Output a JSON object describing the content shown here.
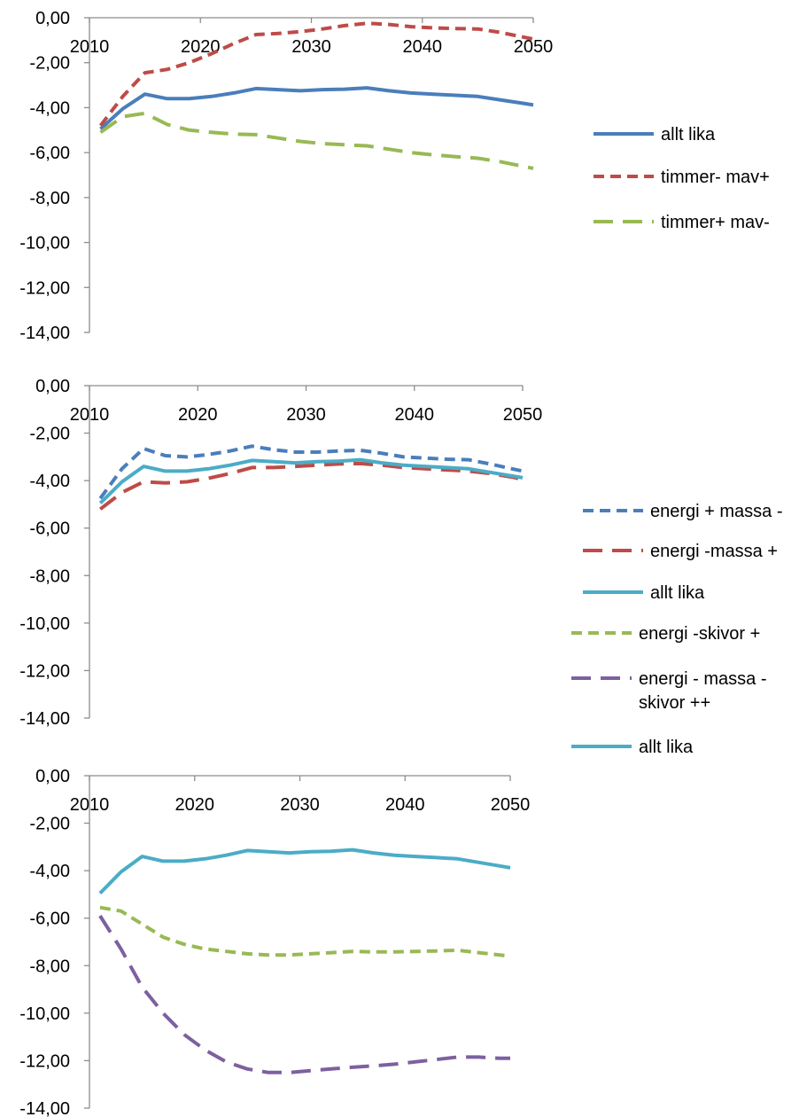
{
  "chart_data": [
    {
      "type": "line",
      "title": "",
      "xlabel": "",
      "ylabel": "",
      "xlim": [
        2010,
        2050
      ],
      "ylim": [
        -14,
        0
      ],
      "x_ticks": [
        "2010",
        "2020",
        "2030",
        "2040",
        "2050"
      ],
      "y_ticks": [
        "0,00",
        "-2,00",
        "-4,00",
        "-6,00",
        "-8,00",
        "-10,00",
        "-12,00",
        "-14,00"
      ],
      "grid": false,
      "legend_position": "right",
      "series": [
        {
          "name": "allt lika",
          "color": "#4a7ebb",
          "dash": "solid",
          "x": [
            2011,
            2013,
            2015,
            2017,
            2019,
            2021,
            2023,
            2025,
            2027,
            2029,
            2031,
            2033,
            2035,
            2037,
            2039,
            2041,
            2043,
            2045,
            2047,
            2049,
            2050
          ],
          "y": [
            -4.95,
            -4.05,
            -3.4,
            -3.6,
            -3.6,
            -3.5,
            -3.35,
            -3.15,
            -3.2,
            -3.25,
            -3.2,
            -3.18,
            -3.12,
            -3.25,
            -3.35,
            -3.4,
            -3.45,
            -3.5,
            -3.65,
            -3.8,
            -3.88
          ]
        },
        {
          "name": "timmer- mav+",
          "color": "#be4b48",
          "dash": "short",
          "x": [
            2011,
            2013,
            2015,
            2017,
            2019,
            2021,
            2023,
            2025,
            2027,
            2029,
            2031,
            2033,
            2035,
            2037,
            2039,
            2041,
            2043,
            2045,
            2047,
            2049,
            2050
          ],
          "y": [
            -4.8,
            -3.5,
            -2.45,
            -2.3,
            -2.0,
            -1.6,
            -1.15,
            -0.75,
            -0.7,
            -0.62,
            -0.5,
            -0.35,
            -0.25,
            -0.3,
            -0.4,
            -0.45,
            -0.48,
            -0.5,
            -0.65,
            -0.85,
            -0.95
          ]
        },
        {
          "name": "timmer+ mav-",
          "color": "#98b954",
          "dash": "long",
          "x": [
            2011,
            2013,
            2015,
            2017,
            2019,
            2021,
            2023,
            2025,
            2027,
            2029,
            2031,
            2033,
            2035,
            2037,
            2039,
            2041,
            2043,
            2045,
            2047,
            2049,
            2050
          ],
          "y": [
            -5.1,
            -4.4,
            -4.25,
            -4.75,
            -5.0,
            -5.1,
            -5.18,
            -5.2,
            -5.35,
            -5.5,
            -5.6,
            -5.65,
            -5.7,
            -5.85,
            -6.0,
            -6.1,
            -6.18,
            -6.25,
            -6.4,
            -6.6,
            -6.7
          ]
        }
      ]
    },
    {
      "type": "line",
      "title": "",
      "xlabel": "",
      "ylabel": "",
      "xlim": [
        2010,
        2050
      ],
      "ylim": [
        -14,
        0
      ],
      "x_ticks": [
        "2010",
        "2020",
        "2030",
        "2040",
        "2050"
      ],
      "y_ticks": [
        "0,00",
        "-2,00",
        "-4,00",
        "-6,00",
        "-8,00",
        "-10,00",
        "-12,00",
        "-14,00"
      ],
      "grid": false,
      "legend_position": "right",
      "series": [
        {
          "name": "energi + massa -",
          "color": "#4a7ebb",
          "dash": "short",
          "x": [
            2011,
            2013,
            2015,
            2017,
            2019,
            2021,
            2023,
            2025,
            2027,
            2029,
            2031,
            2033,
            2035,
            2037,
            2039,
            2041,
            2043,
            2045,
            2047,
            2049,
            2050
          ],
          "y": [
            -4.75,
            -3.5,
            -2.65,
            -2.95,
            -3.0,
            -2.9,
            -2.75,
            -2.55,
            -2.7,
            -2.8,
            -2.8,
            -2.75,
            -2.72,
            -2.85,
            -3.0,
            -3.05,
            -3.1,
            -3.12,
            -3.3,
            -3.5,
            -3.6
          ]
        },
        {
          "name": "energi -massa +",
          "color": "#be4b48",
          "dash": "long",
          "x": [
            2011,
            2013,
            2015,
            2017,
            2019,
            2021,
            2023,
            2025,
            2027,
            2029,
            2031,
            2033,
            2035,
            2037,
            2039,
            2041,
            2043,
            2045,
            2047,
            2049,
            2050
          ],
          "y": [
            -5.2,
            -4.5,
            -4.05,
            -4.1,
            -4.05,
            -3.9,
            -3.7,
            -3.45,
            -3.45,
            -3.4,
            -3.35,
            -3.3,
            -3.28,
            -3.35,
            -3.45,
            -3.5,
            -3.55,
            -3.6,
            -3.7,
            -3.85,
            -3.95
          ]
        },
        {
          "name": "allt lika",
          "color": "#4bacc6",
          "dash": "solid",
          "x": [
            2011,
            2013,
            2015,
            2017,
            2019,
            2021,
            2023,
            2025,
            2027,
            2029,
            2031,
            2033,
            2035,
            2037,
            2039,
            2041,
            2043,
            2045,
            2047,
            2049,
            2050
          ],
          "y": [
            -4.95,
            -4.05,
            -3.4,
            -3.6,
            -3.6,
            -3.5,
            -3.35,
            -3.15,
            -3.2,
            -3.25,
            -3.2,
            -3.18,
            -3.12,
            -3.25,
            -3.35,
            -3.4,
            -3.45,
            -3.5,
            -3.65,
            -3.8,
            -3.88
          ]
        }
      ]
    },
    {
      "type": "line",
      "title": "",
      "xlabel": "",
      "ylabel": "",
      "xlim": [
        2010,
        2050
      ],
      "ylim": [
        -14,
        0
      ],
      "x_ticks": [
        "2010",
        "2020",
        "2030",
        "2040",
        "2050"
      ],
      "y_ticks": [
        "0,00",
        "-2,00",
        "-4,00",
        "-6,00",
        "-8,00",
        "-10,00",
        "-12,00",
        "-14,00"
      ],
      "grid": false,
      "legend_position": "right",
      "series": [
        {
          "name": "energi -skivor +",
          "color": "#98b954",
          "dash": "short",
          "x": [
            2011,
            2013,
            2015,
            2017,
            2019,
            2021,
            2023,
            2025,
            2027,
            2029,
            2031,
            2033,
            2035,
            2037,
            2039,
            2041,
            2043,
            2045,
            2047,
            2049,
            2050
          ],
          "y": [
            -5.55,
            -5.7,
            -6.25,
            -6.8,
            -7.1,
            -7.3,
            -7.4,
            -7.5,
            -7.55,
            -7.55,
            -7.5,
            -7.45,
            -7.4,
            -7.42,
            -7.42,
            -7.4,
            -7.38,
            -7.35,
            -7.45,
            -7.55,
            -7.6
          ]
        },
        {
          "name": "energi - massa - skivor ++",
          "color": "#7d60a0",
          "dash": "long",
          "x": [
            2011,
            2013,
            2015,
            2017,
            2019,
            2021,
            2023,
            2025,
            2027,
            2029,
            2031,
            2033,
            2035,
            2037,
            2039,
            2041,
            2043,
            2045,
            2047,
            2049,
            2050
          ],
          "y": [
            -5.9,
            -7.3,
            -8.9,
            -10.0,
            -10.9,
            -11.55,
            -12.05,
            -12.35,
            -12.5,
            -12.5,
            -12.42,
            -12.35,
            -12.28,
            -12.22,
            -12.15,
            -12.05,
            -11.95,
            -11.85,
            -11.85,
            -11.9,
            -11.9
          ]
        },
        {
          "name": "allt lika",
          "color": "#4bacc6",
          "dash": "solid",
          "x": [
            2011,
            2013,
            2015,
            2017,
            2019,
            2021,
            2023,
            2025,
            2027,
            2029,
            2031,
            2033,
            2035,
            2037,
            2039,
            2041,
            2043,
            2045,
            2047,
            2049,
            2050
          ],
          "y": [
            -4.95,
            -4.05,
            -3.4,
            -3.6,
            -3.6,
            -3.5,
            -3.35,
            -3.15,
            -3.2,
            -3.25,
            -3.2,
            -3.18,
            -3.12,
            -3.25,
            -3.35,
            -3.4,
            -3.45,
            -3.5,
            -3.65,
            -3.8,
            -3.88
          ]
        }
      ]
    }
  ]
}
